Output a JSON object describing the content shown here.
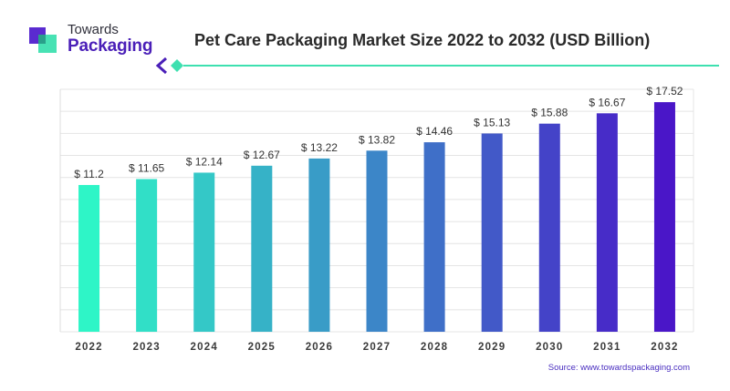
{
  "brand": {
    "line1": "Towards",
    "line2": "Packaging"
  },
  "title": "Pet Care Packaging Market Size 2022 to 2032 (USD Billion)",
  "source": "Source: www.towardspackaging.com",
  "colors": {
    "title": "#2a2a2a",
    "accent_teal": "#3ee0b0",
    "accent_purple": "#4a1fb8",
    "bar_start": "#2ef5c7",
    "bar_end": "#4a16c8",
    "grid": "#e4e4e4"
  },
  "chart_data": {
    "type": "bar",
    "categories": [
      "2022",
      "2023",
      "2024",
      "2025",
      "2026",
      "2027",
      "2028",
      "2029",
      "2030",
      "2031",
      "2032"
    ],
    "values": [
      11.2,
      11.65,
      12.14,
      12.67,
      13.22,
      13.82,
      14.46,
      15.13,
      15.88,
      16.67,
      17.52
    ],
    "value_labels": [
      "$ 11.2",
      "$ 11.65",
      "$ 12.14",
      "$ 12.67",
      "$ 13.22",
      "$ 13.82",
      "$ 14.46",
      "$ 15.13",
      "$ 15.88",
      "$ 16.67",
      "$ 17.52"
    ],
    "title": "Pet Care Packaging Market Size 2022 to 2032 (USD Billion)",
    "xlabel": "",
    "ylabel": "",
    "ylim": [
      0,
      18.5
    ],
    "grid": true,
    "legend": "none"
  }
}
